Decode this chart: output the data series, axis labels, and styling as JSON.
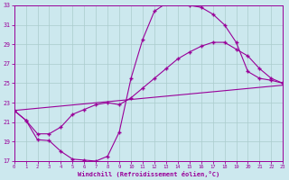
{
  "xlabel": "Windchill (Refroidissement éolien,°C)",
  "xlim": [
    0,
    23
  ],
  "ylim": [
    17,
    33
  ],
  "yticks": [
    17,
    19,
    21,
    23,
    25,
    27,
    29,
    31,
    33
  ],
  "xticks": [
    0,
    1,
    2,
    3,
    4,
    5,
    6,
    7,
    8,
    9,
    10,
    11,
    12,
    13,
    14,
    15,
    16,
    17,
    18,
    19,
    20,
    21,
    22,
    23
  ],
  "bg_color": "#cce8ee",
  "grid_color": "#aacccc",
  "line_color": "#990099",
  "curve1_x": [
    0,
    1,
    2,
    3,
    4,
    5,
    6,
    7,
    8,
    9,
    10,
    11,
    12,
    13,
    14,
    15,
    16,
    17,
    18,
    19,
    20,
    21,
    22,
    23
  ],
  "curve1_y": [
    22.2,
    21.2,
    19.2,
    19.1,
    18.0,
    17.2,
    17.1,
    17.0,
    17.5,
    20.0,
    25.5,
    29.5,
    32.4,
    33.2,
    33.2,
    33.0,
    32.8,
    32.1,
    31.0,
    29.2,
    26.2,
    25.5,
    25.3,
    25.0
  ],
  "curve2_x": [
    0,
    1,
    2,
    3,
    4,
    5,
    6,
    7,
    8,
    9,
    10,
    11,
    12,
    13,
    14,
    15,
    16,
    17,
    18,
    19,
    20,
    21,
    22,
    23
  ],
  "curve2_y": [
    22.2,
    21.2,
    19.8,
    19.8,
    20.5,
    21.8,
    22.3,
    22.8,
    23.0,
    22.8,
    23.5,
    24.5,
    25.5,
    26.5,
    27.5,
    28.2,
    28.8,
    29.2,
    29.2,
    28.5,
    27.8,
    26.5,
    25.5,
    25.0
  ],
  "curve3_x": [
    0,
    23
  ],
  "curve3_y": [
    22.2,
    24.8
  ]
}
